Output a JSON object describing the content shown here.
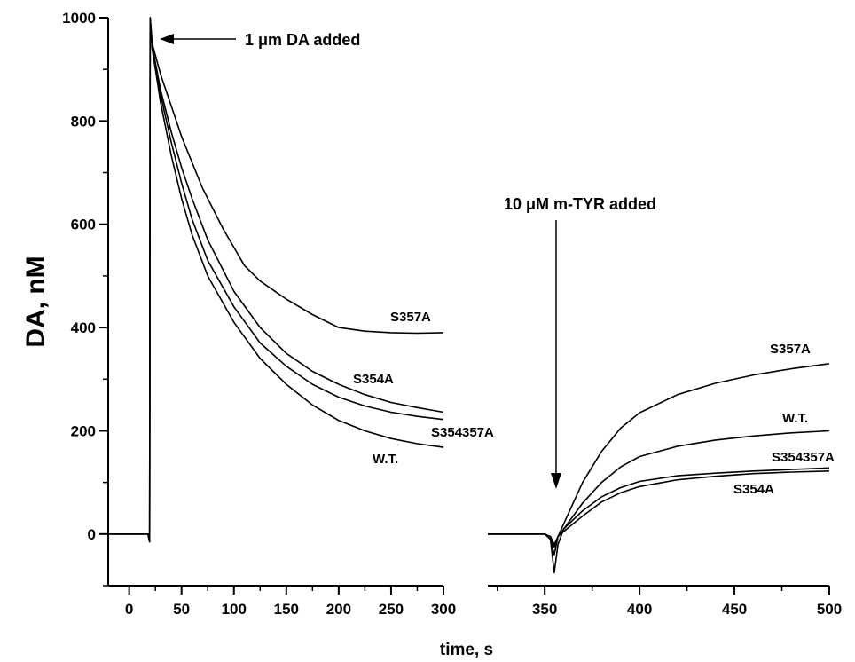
{
  "chart_data": {
    "type": "line",
    "ylabel": "DA, nM",
    "xlabel": "time, s",
    "ylim": [
      -100,
      1000
    ],
    "yticks": [
      0,
      200,
      400,
      600,
      800,
      1000
    ],
    "panels": [
      {
        "name": "left",
        "xlim": [
          -20,
          300
        ],
        "xticks": [
          0,
          50,
          100,
          150,
          200,
          250,
          300
        ]
      },
      {
        "name": "right",
        "xlim": [
          320,
          500
        ],
        "xticks": [
          350,
          400,
          450,
          500
        ]
      }
    ],
    "annotations": [
      {
        "text": "1 μm DA added",
        "x": 20,
        "y": 950
      },
      {
        "text": "10 μM m-TYR added",
        "x": 355,
        "y": 700
      }
    ],
    "series": [
      {
        "name": "S357A",
        "panel": "left",
        "x": [
          -20,
          0,
          18,
          19.5,
          20,
          22,
          30,
          40,
          50,
          60,
          70,
          80,
          90,
          100,
          110,
          125,
          150,
          175,
          200,
          225,
          250,
          275,
          300
        ],
        "y": [
          0,
          0,
          0,
          -15,
          1000,
          950,
          890,
          830,
          770,
          720,
          670,
          630,
          590,
          555,
          520,
          490,
          455,
          425,
          400,
          393,
          390,
          389,
          390
        ]
      },
      {
        "name": "S354A",
        "panel": "left",
        "x": [
          -20,
          0,
          18,
          19.5,
          20,
          22,
          30,
          40,
          50,
          60,
          75,
          100,
          125,
          150,
          175,
          200,
          225,
          250,
          275,
          300
        ],
        "y": [
          0,
          0,
          0,
          -15,
          1000,
          945,
          860,
          780,
          710,
          650,
          570,
          470,
          400,
          350,
          315,
          290,
          270,
          255,
          245,
          236
        ]
      },
      {
        "name": "S354357A",
        "panel": "left",
        "x": [
          -20,
          0,
          18,
          19.5,
          20,
          22,
          30,
          40,
          50,
          60,
          75,
          100,
          125,
          150,
          175,
          200,
          225,
          250,
          275,
          300
        ],
        "y": [
          0,
          0,
          0,
          -15,
          1000,
          940,
          850,
          760,
          680,
          610,
          530,
          440,
          370,
          325,
          290,
          265,
          248,
          236,
          228,
          222
        ]
      },
      {
        "name": "W.T.",
        "panel": "left",
        "x": [
          -20,
          0,
          18,
          19.5,
          20,
          22,
          30,
          40,
          50,
          60,
          75,
          100,
          125,
          150,
          175,
          200,
          225,
          250,
          275,
          300
        ],
        "y": [
          0,
          0,
          0,
          -15,
          1000,
          940,
          835,
          735,
          650,
          580,
          500,
          410,
          340,
          290,
          250,
          220,
          200,
          185,
          175,
          168
        ]
      },
      {
        "name": "S357A",
        "panel": "right",
        "x": [
          320,
          350,
          353,
          355,
          357,
          360,
          370,
          380,
          390,
          400,
          420,
          440,
          460,
          480,
          500
        ],
        "y": [
          0,
          0,
          -10,
          -40,
          -5,
          20,
          100,
          160,
          205,
          235,
          270,
          292,
          308,
          320,
          330
        ]
      },
      {
        "name": "W.T.",
        "panel": "right",
        "x": [
          320,
          350,
          353,
          355,
          357,
          360,
          370,
          380,
          390,
          400,
          420,
          440,
          460,
          480,
          500
        ],
        "y": [
          0,
          0,
          -10,
          -75,
          -20,
          10,
          60,
          100,
          130,
          150,
          170,
          182,
          190,
          196,
          200
        ]
      },
      {
        "name": "S354357A",
        "panel": "right",
        "x": [
          320,
          350,
          353,
          355,
          357,
          360,
          370,
          380,
          390,
          400,
          420,
          440,
          460,
          480,
          500
        ],
        "y": [
          0,
          0,
          -5,
          -25,
          -5,
          10,
          45,
          72,
          90,
          102,
          113,
          118,
          122,
          125,
          128
        ]
      },
      {
        "name": "S354A",
        "panel": "right",
        "x": [
          320,
          350,
          353,
          355,
          357,
          360,
          370,
          380,
          390,
          400,
          420,
          440,
          460,
          480,
          500
        ],
        "y": [
          0,
          0,
          -5,
          -20,
          -5,
          5,
          35,
          62,
          80,
          92,
          105,
          112,
          117,
          120,
          122
        ]
      }
    ]
  }
}
